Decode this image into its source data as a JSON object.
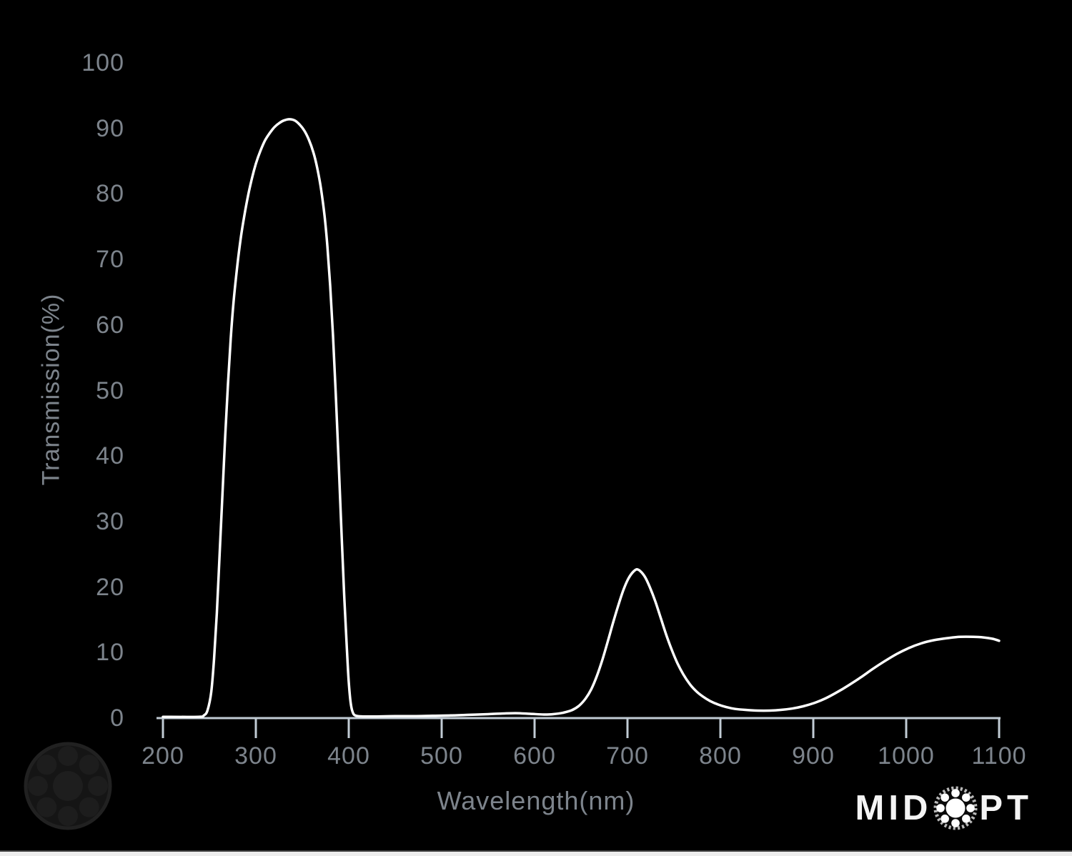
{
  "chart_data": {
    "type": "line",
    "title": "",
    "xlabel": "Wavelength(nm)",
    "ylabel": "Transmission(%)",
    "xlim": [
      200,
      1100
    ],
    "ylim": [
      0,
      100
    ],
    "x_ticks": [
      200,
      300,
      400,
      500,
      600,
      700,
      800,
      900,
      1000,
      1100
    ],
    "y_ticks": [
      0,
      10,
      20,
      30,
      40,
      50,
      60,
      70,
      80,
      90,
      100
    ],
    "grid": false,
    "legend": null,
    "background_color": "#000000",
    "line_color": "#ffffff",
    "axis_color": "#c1cbd4",
    "label_color": "#7d848c",
    "series": [
      {
        "name": "Transmission",
        "points": [
          [
            200,
            0.2
          ],
          [
            238,
            0.2
          ],
          [
            244,
            0.4
          ],
          [
            248,
            1.2
          ],
          [
            252,
            4
          ],
          [
            255,
            9
          ],
          [
            258,
            16
          ],
          [
            261,
            25
          ],
          [
            264,
            34
          ],
          [
            267,
            43
          ],
          [
            270,
            51
          ],
          [
            273,
            58
          ],
          [
            276,
            63.5
          ],
          [
            280,
            69
          ],
          [
            284,
            73.5
          ],
          [
            288,
            77
          ],
          [
            292,
            80
          ],
          [
            296,
            82.5
          ],
          [
            300,
            84.6
          ],
          [
            305,
            86.6
          ],
          [
            310,
            88.2
          ],
          [
            315,
            89.3
          ],
          [
            320,
            90.2
          ],
          [
            325,
            90.8
          ],
          [
            330,
            91.2
          ],
          [
            336,
            91.4
          ],
          [
            342,
            91.2
          ],
          [
            347,
            90.6
          ],
          [
            352,
            89.7
          ],
          [
            357,
            88.3
          ],
          [
            362,
            86.3
          ],
          [
            366,
            84
          ],
          [
            370,
            80.9
          ],
          [
            374,
            76.6
          ],
          [
            377,
            72
          ],
          [
            380,
            66
          ],
          [
            383,
            58.5
          ],
          [
            386,
            49.5
          ],
          [
            389,
            39.5
          ],
          [
            392,
            29
          ],
          [
            395,
            19
          ],
          [
            398,
            10.5
          ],
          [
            400,
            5.5
          ],
          [
            402,
            2.4
          ],
          [
            404,
            1
          ],
          [
            407,
            0.4
          ],
          [
            415,
            0.25
          ],
          [
            430,
            0.25
          ],
          [
            450,
            0.3
          ],
          [
            470,
            0.3
          ],
          [
            490,
            0.35
          ],
          [
            510,
            0.4
          ],
          [
            530,
            0.5
          ],
          [
            550,
            0.6
          ],
          [
            565,
            0.7
          ],
          [
            580,
            0.75
          ],
          [
            595,
            0.65
          ],
          [
            610,
            0.55
          ],
          [
            620,
            0.6
          ],
          [
            630,
            0.8
          ],
          [
            640,
            1.2
          ],
          [
            648,
            1.9
          ],
          [
            655,
            3
          ],
          [
            661,
            4.4
          ],
          [
            667,
            6.4
          ],
          [
            673,
            8.9
          ],
          [
            679,
            11.8
          ],
          [
            685,
            14.8
          ],
          [
            691,
            17.6
          ],
          [
            696,
            19.7
          ],
          [
            701,
            21.3
          ],
          [
            706,
            22.3
          ],
          [
            710,
            22.7
          ],
          [
            714,
            22.4
          ],
          [
            719,
            21.5
          ],
          [
            724,
            20
          ],
          [
            730,
            17.8
          ],
          [
            736,
            15.2
          ],
          [
            742,
            12.6
          ],
          [
            748,
            10.3
          ],
          [
            754,
            8.3
          ],
          [
            760,
            6.7
          ],
          [
            767,
            5.2
          ],
          [
            774,
            4.1
          ],
          [
            781,
            3.3
          ],
          [
            789,
            2.6
          ],
          [
            797,
            2.1
          ],
          [
            806,
            1.7
          ],
          [
            816,
            1.4
          ],
          [
            827,
            1.25
          ],
          [
            840,
            1.15
          ],
          [
            853,
            1.15
          ],
          [
            865,
            1.25
          ],
          [
            877,
            1.45
          ],
          [
            889,
            1.8
          ],
          [
            901,
            2.3
          ],
          [
            913,
            3
          ],
          [
            925,
            3.9
          ],
          [
            938,
            5
          ],
          [
            951,
            6.2
          ],
          [
            964,
            7.5
          ],
          [
            977,
            8.7
          ],
          [
            990,
            9.8
          ],
          [
            1003,
            10.7
          ],
          [
            1016,
            11.4
          ],
          [
            1030,
            11.9
          ],
          [
            1044,
            12.2
          ],
          [
            1058,
            12.4
          ],
          [
            1072,
            12.4
          ],
          [
            1084,
            12.3
          ],
          [
            1093,
            12.1
          ],
          [
            1100,
            11.8
          ]
        ]
      }
    ]
  },
  "branding": {
    "wordmark_left": "MID",
    "wordmark_right": "PT",
    "emblem": "ball-bearing-emblem",
    "watermark": "ball-bearing-watermark"
  }
}
